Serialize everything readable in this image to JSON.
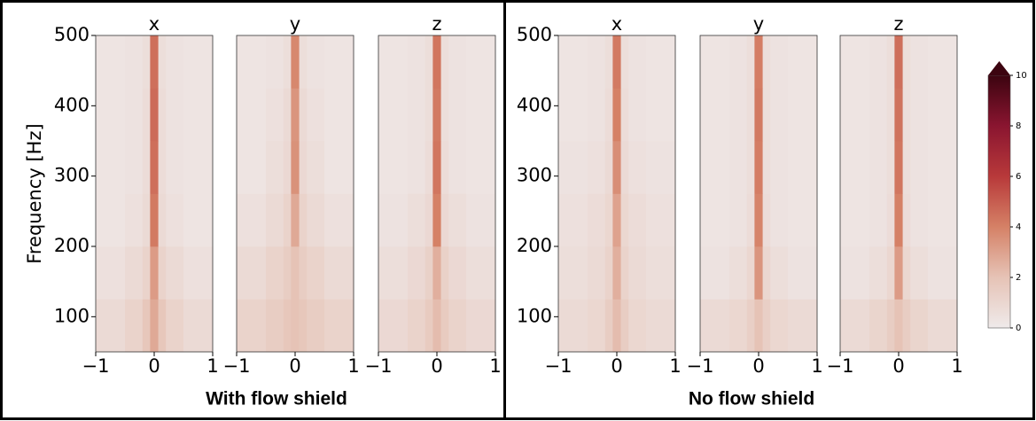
{
  "groups": [
    {
      "label": "With flow shield"
    },
    {
      "label": "No flow shield"
    }
  ],
  "colorbar": {
    "lim": [
      0,
      10
    ],
    "ticks": [
      0,
      2,
      4,
      6,
      8,
      10
    ],
    "colors": [
      "#efeaea",
      "#e6c3b6",
      "#d58166",
      "#b8393a",
      "#8a1530",
      "#3c0410"
    ]
  },
  "chart_data": [
    {
      "type": "heatmap",
      "title": "x",
      "ylabel": "Frequency [Hz]",
      "x_edges": [
        -1,
        -0.5,
        -0.2,
        -0.07,
        0.07,
        0.2,
        0.5,
        1
      ],
      "y_edges": [
        50,
        125,
        200,
        275,
        350,
        425,
        500
      ],
      "xlim": [
        -1,
        1
      ],
      "ylim": [
        50,
        500
      ],
      "xticks": [
        {
          "value": -1,
          "label": "−1"
        },
        0,
        1
      ],
      "yticks": [
        100,
        200,
        300,
        400,
        500
      ],
      "values": [
        [
          0.8,
          1.2,
          1.8,
          2.8,
          1.8,
          1.2,
          0.8
        ],
        [
          0.5,
          0.8,
          1.2,
          3.2,
          1.2,
          0.8,
          0.5
        ],
        [
          0.3,
          0.5,
          0.8,
          4.2,
          0.8,
          0.5,
          0.3
        ],
        [
          0.3,
          0.4,
          0.7,
          4.5,
          0.7,
          0.4,
          0.3
        ],
        [
          0.3,
          0.4,
          0.7,
          4.6,
          0.7,
          0.4,
          0.3
        ],
        [
          0.3,
          0.4,
          0.6,
          4.5,
          0.6,
          0.4,
          0.3
        ]
      ]
    },
    {
      "type": "heatmap",
      "title": "y",
      "x_edges": [
        -1,
        -0.5,
        -0.2,
        -0.07,
        0.07,
        0.2,
        0.5,
        1
      ],
      "y_edges": [
        50,
        125,
        200,
        275,
        350,
        425,
        500
      ],
      "xlim": [
        -1,
        1
      ],
      "ylim": [
        50,
        500
      ],
      "xticks": [
        {
          "value": -1,
          "label": "−1"
        },
        0,
        1
      ],
      "values": [
        [
          1.2,
          1.5,
          1.8,
          2.0,
          1.8,
          1.5,
          1.2
        ],
        [
          0.8,
          1.2,
          1.5,
          2.0,
          1.5,
          1.2,
          0.8
        ],
        [
          0.5,
          0.8,
          1.2,
          2.8,
          1.2,
          0.8,
          0.5
        ],
        [
          0.3,
          0.6,
          0.9,
          3.5,
          0.9,
          0.6,
          0.3
        ],
        [
          0.3,
          0.5,
          0.8,
          3.4,
          0.8,
          0.5,
          0.3
        ],
        [
          0.3,
          0.4,
          0.6,
          3.8,
          0.6,
          0.4,
          0.3
        ]
      ]
    },
    {
      "type": "heatmap",
      "title": "z",
      "x_edges": [
        -1,
        -0.5,
        -0.2,
        -0.07,
        0.07,
        0.2,
        0.5,
        1
      ],
      "y_edges": [
        50,
        125,
        200,
        275,
        350,
        425,
        500
      ],
      "xlim": [
        -1,
        1
      ],
      "ylim": [
        50,
        500
      ],
      "xticks": [
        {
          "value": -1,
          "label": "−1"
        },
        0,
        1
      ],
      "values": [
        [
          0.9,
          1.2,
          1.6,
          2.2,
          1.6,
          1.2,
          0.9
        ],
        [
          0.6,
          0.9,
          1.3,
          2.6,
          1.3,
          0.9,
          0.6
        ],
        [
          0.4,
          0.6,
          0.9,
          4.0,
          0.9,
          0.6,
          0.4
        ],
        [
          0.3,
          0.4,
          0.7,
          4.3,
          0.7,
          0.4,
          0.3
        ],
        [
          0.3,
          0.4,
          0.6,
          4.2,
          0.6,
          0.4,
          0.3
        ],
        [
          0.3,
          0.4,
          0.6,
          4.3,
          0.6,
          0.4,
          0.3
        ]
      ]
    },
    {
      "type": "heatmap",
      "title": "x",
      "x_edges": [
        -1,
        -0.5,
        -0.2,
        -0.07,
        0.07,
        0.2,
        0.5,
        1
      ],
      "y_edges": [
        50,
        125,
        200,
        275,
        350,
        425,
        500
      ],
      "xlim": [
        -1,
        1
      ],
      "ylim": [
        50,
        500
      ],
      "xticks": [
        {
          "value": -1,
          "label": "−1"
        },
        0,
        1
      ],
      "yticks": [
        100,
        200,
        300,
        400,
        500
      ],
      "values": [
        [
          0.8,
          1.0,
          1.5,
          2.2,
          1.5,
          1.0,
          0.8
        ],
        [
          0.6,
          0.8,
          1.2,
          2.6,
          1.2,
          0.8,
          0.6
        ],
        [
          0.5,
          0.7,
          1.0,
          3.0,
          1.0,
          0.7,
          0.5
        ],
        [
          0.4,
          0.5,
          0.8,
          3.6,
          0.8,
          0.5,
          0.4
        ],
        [
          0.3,
          0.4,
          0.7,
          4.0,
          0.7,
          0.4,
          0.3
        ],
        [
          0.3,
          0.4,
          0.6,
          4.2,
          0.6,
          0.4,
          0.3
        ]
      ]
    },
    {
      "type": "heatmap",
      "title": "y",
      "x_edges": [
        -1,
        -0.5,
        -0.2,
        -0.07,
        0.07,
        0.2,
        0.5,
        1
      ],
      "y_edges": [
        50,
        125,
        200,
        275,
        350,
        425,
        500
      ],
      "xlim": [
        -1,
        1
      ],
      "ylim": [
        50,
        500
      ],
      "xticks": [
        {
          "value": -1,
          "label": "−1"
        },
        0,
        1
      ],
      "values": [
        [
          0.8,
          1.0,
          1.4,
          2.0,
          1.4,
          1.0,
          0.8
        ],
        [
          0.4,
          0.6,
          1.0,
          3.4,
          1.0,
          0.6,
          0.4
        ],
        [
          0.3,
          0.4,
          0.7,
          3.9,
          0.7,
          0.4,
          0.3
        ],
        [
          0.3,
          0.4,
          0.6,
          4.1,
          0.6,
          0.4,
          0.3
        ],
        [
          0.3,
          0.4,
          0.6,
          4.2,
          0.6,
          0.4,
          0.3
        ],
        [
          0.3,
          0.4,
          0.6,
          4.1,
          0.6,
          0.4,
          0.3
        ]
      ]
    },
    {
      "type": "heatmap",
      "title": "z",
      "x_edges": [
        -1,
        -0.5,
        -0.2,
        -0.07,
        0.07,
        0.2,
        0.5,
        1
      ],
      "y_edges": [
        50,
        125,
        200,
        275,
        350,
        425,
        500
      ],
      "xlim": [
        -1,
        1
      ],
      "ylim": [
        50,
        500
      ],
      "xticks": [
        {
          "value": -1,
          "label": "−1"
        },
        0,
        1
      ],
      "values": [
        [
          0.8,
          1.1,
          1.5,
          2.0,
          1.5,
          1.1,
          0.8
        ],
        [
          0.4,
          0.6,
          1.0,
          3.2,
          1.0,
          0.6,
          0.4
        ],
        [
          0.3,
          0.4,
          0.7,
          4.0,
          0.7,
          0.4,
          0.3
        ],
        [
          0.3,
          0.4,
          0.6,
          4.3,
          0.6,
          0.4,
          0.3
        ],
        [
          0.3,
          0.4,
          0.6,
          4.4,
          0.6,
          0.4,
          0.3
        ],
        [
          0.3,
          0.4,
          0.6,
          4.5,
          0.6,
          0.4,
          0.3
        ]
      ]
    }
  ]
}
